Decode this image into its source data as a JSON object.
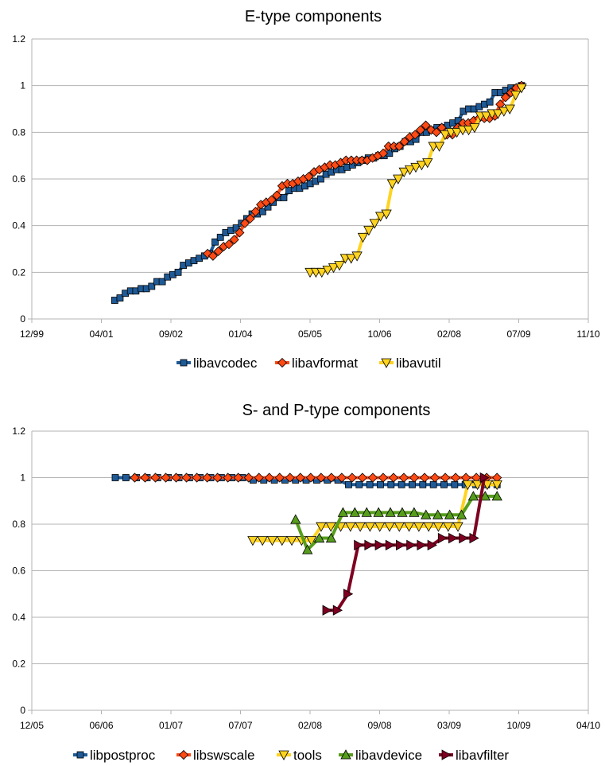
{
  "chart_data": [
    {
      "type": "line",
      "title": "E-type components",
      "xlabel": "",
      "ylabel": "",
      "ylim": [
        0,
        1.2
      ],
      "y_ticks": [
        "0",
        "0.2",
        "0.4",
        "0.6",
        "0.8",
        "1",
        "1.2"
      ],
      "x_ticks": [
        "12/99",
        "04/01",
        "09/02",
        "01/04",
        "05/05",
        "10/06",
        "02/08",
        "07/09",
        "11/10"
      ],
      "legend_position": "bottom",
      "grid": true,
      "series": [
        {
          "name": "libavcodec",
          "color": "#1f5a96",
          "marker": "square",
          "values": [
            0.08,
            0.09,
            0.11,
            0.12,
            0.12,
            0.13,
            0.13,
            0.14,
            0.16,
            0.16,
            0.18,
            0.19,
            0.2,
            0.23,
            0.24,
            0.25,
            0.26,
            0.27,
            0.28,
            0.33,
            0.35,
            0.37,
            0.38,
            0.39,
            0.41,
            0.43,
            0.45,
            0.45,
            0.46,
            0.48,
            0.5,
            0.52,
            0.52,
            0.55,
            0.56,
            0.56,
            0.57,
            0.58,
            0.59,
            0.6,
            0.62,
            0.63,
            0.64,
            0.64,
            0.65,
            0.66,
            0.67,
            0.68,
            0.69,
            0.69,
            0.7,
            0.7,
            0.71,
            0.73,
            0.74,
            0.76,
            0.76,
            0.77,
            0.8,
            0.8,
            0.81,
            0.82,
            0.82,
            0.83,
            0.84,
            0.85,
            0.89,
            0.9,
            0.9,
            0.91,
            0.92,
            0.93,
            0.97,
            0.97,
            0.98,
            0.99,
            0.99,
            1.0
          ]
        },
        {
          "name": "libavformat",
          "color": "#ff4a14",
          "marker": "diamond",
          "values": [
            0.28,
            0.27,
            0.29,
            0.31,
            0.32,
            0.34,
            0.37,
            0.41,
            0.43,
            0.46,
            0.49,
            0.5,
            0.51,
            0.53,
            0.57,
            0.58,
            0.58,
            0.59,
            0.6,
            0.61,
            0.63,
            0.64,
            0.65,
            0.66,
            0.66,
            0.67,
            0.68,
            0.68,
            0.68,
            0.68,
            0.68,
            0.69,
            0.7,
            0.71,
            0.74,
            0.74,
            0.74,
            0.76,
            0.78,
            0.79,
            0.81,
            0.83,
            0.81,
            0.8,
            0.82,
            0.79,
            0.79,
            0.82,
            0.84,
            0.84,
            0.85,
            0.86,
            0.86,
            0.86,
            0.87,
            0.92,
            0.95,
            0.97,
            0.99,
            1.0
          ]
        },
        {
          "name": "libavutil",
          "color": "#ffd320",
          "marker": "triangle-down",
          "values": [
            0.2,
            0.2,
            0.2,
            0.21,
            0.22,
            0.23,
            0.26,
            0.26,
            0.27,
            0.35,
            0.38,
            0.41,
            0.44,
            0.45,
            0.58,
            0.6,
            0.63,
            0.64,
            0.65,
            0.66,
            0.67,
            0.74,
            0.74,
            0.79,
            0.8,
            0.8,
            0.81,
            0.81,
            0.82,
            0.87,
            0.87,
            0.88,
            0.88,
            0.89,
            0.9,
            0.96,
            0.99
          ]
        }
      ]
    },
    {
      "type": "line",
      "title": "S- and P-type components",
      "xlabel": "",
      "ylabel": "",
      "ylim": [
        0,
        1.2
      ],
      "y_ticks": [
        "0",
        "0.2",
        "0.4",
        "0.6",
        "0.8",
        "1",
        "1.2"
      ],
      "x_ticks": [
        "12/05",
        "06/06",
        "01/07",
        "07/07",
        "02/08",
        "09/08",
        "03/09",
        "10/09",
        "04/10"
      ],
      "legend_position": "bottom",
      "grid": true,
      "series": [
        {
          "name": "libpostproc",
          "color": "#1f5a96",
          "marker": "square",
          "values": [
            1.0,
            1.0,
            1.0,
            1.0,
            1.0,
            1.0,
            1.0,
            1.0,
            1.0,
            1.0,
            1.0,
            1.0,
            1.0,
            0.99,
            0.99,
            0.99,
            0.99,
            0.99,
            0.99,
            0.99,
            0.99,
            0.99,
            0.97,
            0.97,
            0.97,
            0.97,
            0.97,
            0.97,
            0.97,
            0.97,
            0.97,
            0.97,
            0.97,
            0.97,
            0.97,
            0.97,
            0.97
          ]
        },
        {
          "name": "libswscale",
          "color": "#ff4a14",
          "marker": "diamond",
          "values": [
            1.0,
            1.0,
            1.0,
            1.0,
            1.0,
            1.0,
            1.0,
            1.0,
            1.0,
            1.0,
            1.0,
            1.0,
            1.0,
            1.0,
            1.0,
            1.0,
            1.0,
            1.0,
            1.0,
            1.0,
            1.0,
            1.0,
            1.0,
            1.0,
            1.0,
            1.0,
            1.0,
            1.0,
            1.0,
            1.0,
            1.0,
            1.0,
            1.0,
            1.0,
            1.0,
            1.0
          ]
        },
        {
          "name": "tools",
          "color": "#ffd320",
          "marker": "triangle-down",
          "values": [
            0.73,
            0.73,
            0.73,
            0.73,
            0.73,
            0.73,
            0.73,
            0.79,
            0.79,
            0.79,
            0.79,
            0.79,
            0.79,
            0.79,
            0.79,
            0.79,
            0.79,
            0.79,
            0.79,
            0.79,
            0.79,
            0.79,
            0.97,
            0.97,
            0.97,
            0.97
          ]
        },
        {
          "name": "libavdevice",
          "color": "#579d1c",
          "marker": "triangle-up",
          "values": [
            0.82,
            0.69,
            0.74,
            0.74,
            0.85,
            0.85,
            0.85,
            0.85,
            0.85,
            0.85,
            0.85,
            0.84,
            0.84,
            0.84,
            0.84,
            0.92,
            0.92,
            0.92
          ]
        },
        {
          "name": "libavfilter",
          "color": "#7e0021",
          "marker": "triangle-right",
          "values": [
            0.43,
            0.43,
            0.5,
            0.71,
            0.71,
            0.71,
            0.71,
            0.71,
            0.71,
            0.71,
            0.71,
            0.74,
            0.74,
            0.74,
            0.74,
            1.0
          ]
        }
      ]
    }
  ]
}
